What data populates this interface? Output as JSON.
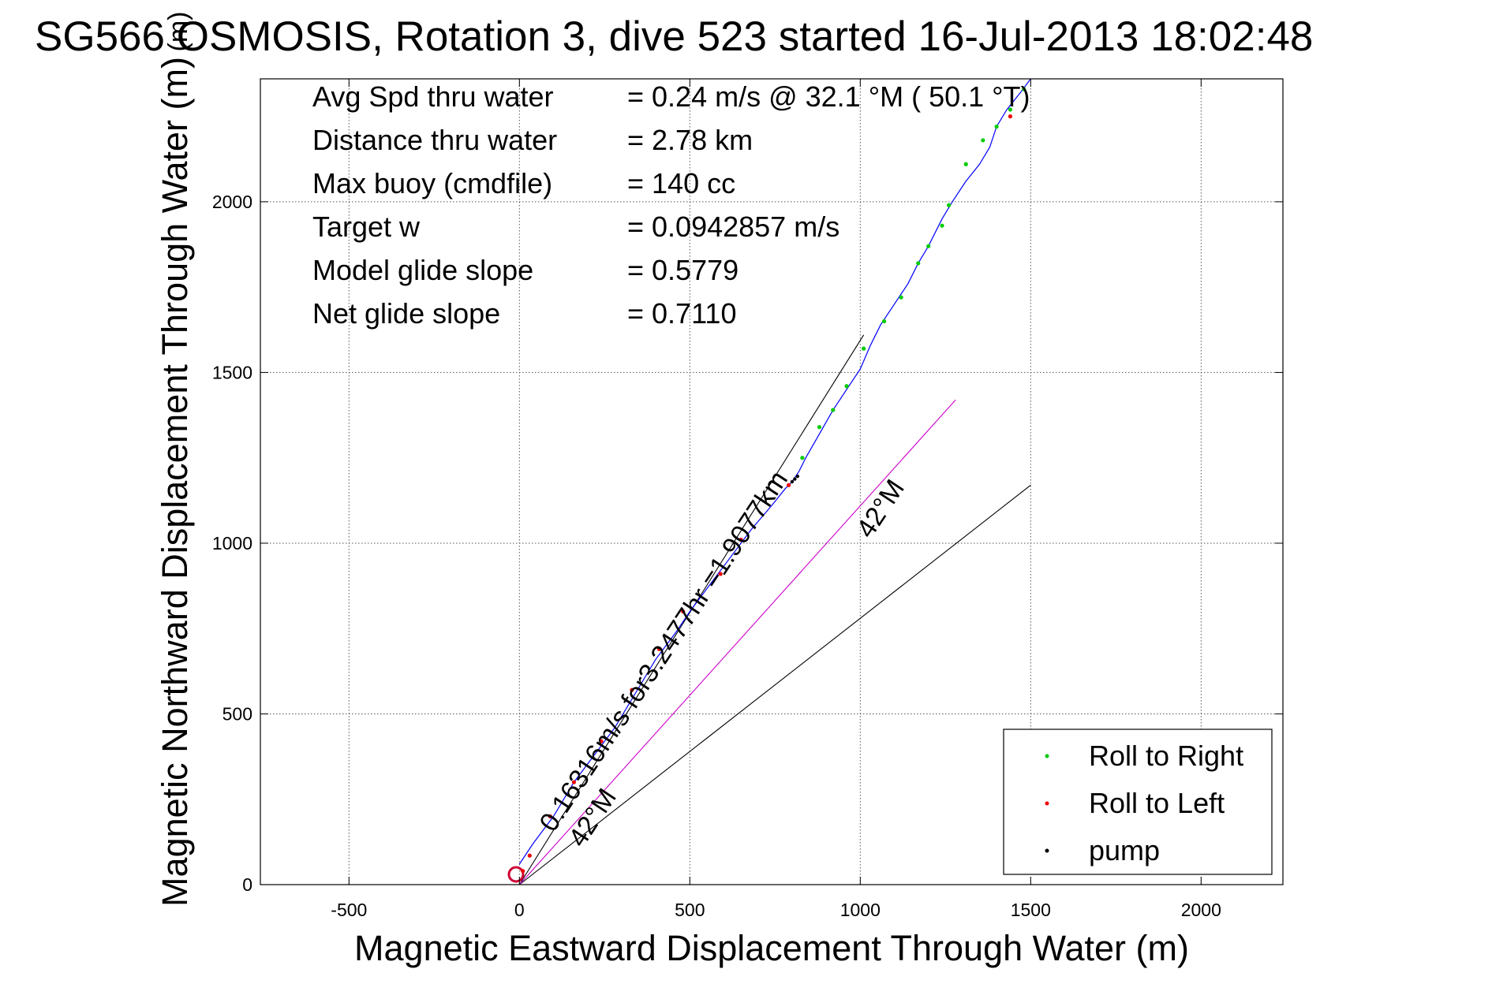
{
  "chart_data": {
    "type": "line",
    "title": "SG566 OSMOSIS, Rotation 3, dive 523 started 16-Jul-2013 18:02:48",
    "xlabel": "Magnetic Eastward Displacement Through Water (m)",
    "ylabel": "Magnetic Northward Displacement Through Water (m)",
    "xlim": [
      -760,
      2240
    ],
    "ylim": [
      0,
      2360
    ],
    "xticks": [
      -500,
      0,
      500,
      1000,
      1500,
      2000
    ],
    "xtick_labels": [
      "-500",
      "0",
      "500",
      "1000",
      "1500",
      "2000"
    ],
    "yticks": [
      0,
      500,
      1000,
      1500,
      2000
    ],
    "ytick_labels": [
      "0",
      "500",
      "1000",
      "1500",
      "2000"
    ],
    "grid": true,
    "stats": [
      {
        "label": "Avg Spd thru water",
        "value": "=  0.24 m/s @  32.1 °M ( 50.1 °T)"
      },
      {
        "label": "Distance thru water",
        "value": "=  2.78 km"
      },
      {
        "label": "Max buoy (cmdfile)",
        "value": "= 140 cc"
      },
      {
        "label": "Target w",
        "value": "= 0.0942857 m/s"
      },
      {
        "label": "Model glide slope",
        "value": "= 0.5779"
      },
      {
        "label": "Net glide slope",
        "value": "= 0.7110"
      }
    ],
    "track": {
      "color": "#0000ff",
      "x": [
        0,
        40,
        100,
        160,
        220,
        280,
        340,
        400,
        460,
        500,
        560,
        620,
        680,
        740,
        780,
        800,
        820,
        840,
        880,
        920,
        960,
        1000,
        1030,
        1060,
        1100,
        1140,
        1170,
        1200,
        1240,
        1270,
        1310,
        1350,
        1380,
        1400,
        1430,
        1470,
        1500
      ],
      "y": [
        60,
        120,
        200,
        300,
        380,
        460,
        560,
        660,
        740,
        800,
        880,
        960,
        1040,
        1110,
        1160,
        1180,
        1210,
        1250,
        1320,
        1390,
        1450,
        1510,
        1580,
        1640,
        1700,
        1760,
        1820,
        1870,
        1950,
        2000,
        2060,
        2110,
        2160,
        2220,
        2270,
        2320,
        2360
      ]
    },
    "roll_right_points": {
      "color": "#00cc00",
      "x": [
        830,
        880,
        920,
        960,
        1010,
        1070,
        1120,
        1170,
        1200,
        1240,
        1260,
        1310,
        1360,
        1400,
        1440,
        1480
      ],
      "y": [
        1250,
        1340,
        1390,
        1460,
        1570,
        1650,
        1720,
        1820,
        1870,
        1930,
        1990,
        2110,
        2180,
        2220,
        2270,
        2330
      ]
    },
    "roll_left_points": {
      "color": "#ee0000",
      "x": [
        10,
        30,
        90,
        160,
        240,
        330,
        410,
        480,
        590,
        650,
        790,
        1440
      ],
      "y": [
        40,
        85,
        200,
        300,
        420,
        570,
        690,
        800,
        910,
        1010,
        1170,
        2250
      ]
    },
    "pump_points": {
      "color": "#000000",
      "x": [
        800,
        808,
        816
      ],
      "y": [
        1180,
        1188,
        1196
      ]
    },
    "reference_lines": [
      {
        "name": "net glide path",
        "color": "#000000",
        "x": [
          0,
          1010
        ],
        "y": [
          0,
          1610
        ]
      },
      {
        "name": "current 42°M",
        "color": "#000000",
        "x": [
          0,
          1500
        ],
        "y": [
          0,
          1170
        ]
      },
      {
        "name": "heading",
        "color": "#cc00cc",
        "x": [
          0,
          1280
        ],
        "y": [
          0,
          1420
        ]
      }
    ],
    "annotations": [
      {
        "text": "0.16316m/s for3.2477hr =1.9077km",
        "x": 100,
        "y": 150,
        "angle": -56.5
      },
      {
        "text": "42°M",
        "x": 185,
        "y": 105,
        "angle": -56.5
      },
      {
        "text": "42°M",
        "x": 1030,
        "y": 1010,
        "angle": -56.5
      }
    ],
    "legend": {
      "position": "bottom-right",
      "entries": [
        {
          "label": "Roll to Right",
          "color": "#00cc00"
        },
        {
          "label": "Roll to Left",
          "color": "#ee0000"
        },
        {
          "label": "pump",
          "color": "#000000"
        }
      ]
    },
    "axis_label_overlay": "(m)"
  }
}
